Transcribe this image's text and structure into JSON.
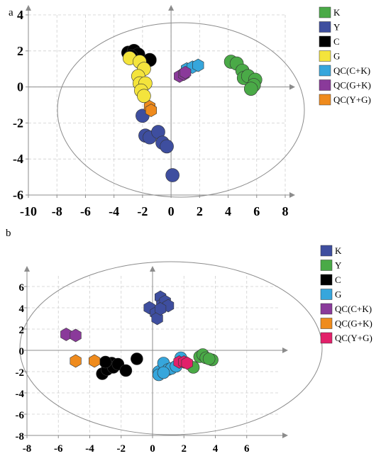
{
  "chart_data": [
    {
      "type": "scatter",
      "panel_label": "a",
      "xlim": [
        -10,
        8
      ],
      "ylim": [
        -6,
        4
      ],
      "xticks": [
        -10,
        -8,
        -6,
        -4,
        -2,
        0,
        2,
        4,
        6,
        8
      ],
      "yticks": [
        -6,
        -4,
        -2,
        0,
        2,
        4
      ],
      "grid": true,
      "legend_position": "right",
      "series": [
        {
          "name": "K",
          "color": "#4aaa47",
          "marker": "circle",
          "points": [
            [
              4.2,
              1.4
            ],
            [
              4.6,
              1.3
            ],
            [
              5.0,
              0.9
            ],
            [
              5.1,
              0.5
            ],
            [
              5.4,
              0.6
            ],
            [
              5.9,
              0.4
            ],
            [
              5.8,
              0.1
            ],
            [
              5.6,
              -0.1
            ]
          ]
        },
        {
          "name": "Y",
          "color": "#3e4e9f",
          "marker": "circle",
          "points": [
            [
              -2.0,
              -1.6
            ],
            [
              -1.8,
              -2.7
            ],
            [
              -1.5,
              -2.8
            ],
            [
              -0.9,
              -2.5
            ],
            [
              -0.6,
              -3.1
            ],
            [
              -0.3,
              -3.3
            ],
            [
              0.1,
              -4.9
            ]
          ]
        },
        {
          "name": "C",
          "color": "#000000",
          "marker": "circle",
          "points": [
            [
              -3.0,
              1.9
            ],
            [
              -2.6,
              2.0
            ],
            [
              -2.3,
              1.8
            ],
            [
              -1.5,
              1.5
            ],
            [
              -2.8,
              1.7
            ]
          ]
        },
        {
          "name": "G",
          "color": "#f4e43c",
          "marker": "circle",
          "points": [
            [
              -2.9,
              1.6
            ],
            [
              -2.2,
              1.4
            ],
            [
              -1.9,
              1.0
            ],
            [
              -2.3,
              0.6
            ],
            [
              -2.2,
              0.2
            ],
            [
              -1.8,
              0.2
            ],
            [
              -2.1,
              -0.2
            ],
            [
              -1.9,
              -0.5
            ]
          ]
        },
        {
          "name": "QC(C+K)",
          "color": "#36a6dc",
          "marker": "hexagon",
          "points": [
            [
              1.1,
              1.0
            ],
            [
              1.5,
              1.1
            ],
            [
              1.9,
              1.2
            ]
          ]
        },
        {
          "name": "QC(G+K)",
          "color": "#8a3a9a",
          "marker": "hexagon",
          "points": [
            [
              0.6,
              0.6
            ],
            [
              0.9,
              0.7
            ],
            [
              1.0,
              0.8
            ]
          ]
        },
        {
          "name": "QC(Y+G)",
          "color": "#ef8b1d",
          "marker": "hexagon",
          "points": [
            [
              -1.5,
              -1.1
            ],
            [
              -1.4,
              -1.3
            ]
          ]
        }
      ]
    },
    {
      "type": "scatter",
      "panel_label": "b",
      "xlim": [
        -8,
        8
      ],
      "ylim": [
        -8,
        7
      ],
      "xticks": [
        -8,
        -6,
        -4,
        -2,
        0,
        2,
        4,
        6
      ],
      "yticks": [
        -8,
        -6,
        -4,
        -2,
        0,
        2,
        4,
        6
      ],
      "grid": true,
      "legend_position": "right",
      "series": [
        {
          "name": "K",
          "color": "#3e4e9f",
          "marker": "hexagon",
          "points": [
            [
              -0.2,
              4.0
            ],
            [
              0.2,
              3.5
            ],
            [
              0.5,
              5.0
            ],
            [
              0.6,
              4.3
            ],
            [
              0.8,
              4.6
            ],
            [
              1.0,
              4.2
            ],
            [
              0.3,
              3.0
            ],
            [
              0.5,
              3.9
            ]
          ]
        },
        {
          "name": "Y",
          "color": "#4aaa47",
          "marker": "circle",
          "points": [
            [
              3.0,
              -0.6
            ],
            [
              3.2,
              -0.4
            ],
            [
              3.4,
              -0.7
            ],
            [
              3.8,
              -0.9
            ],
            [
              2.6,
              -1.6
            ],
            [
              3.6,
              -0.8
            ]
          ]
        },
        {
          "name": "C",
          "color": "#000000",
          "marker": "circle",
          "points": [
            [
              -3.2,
              -2.2
            ],
            [
              -2.9,
              -1.8
            ],
            [
              -2.6,
              -1.2
            ],
            [
              -2.5,
              -1.6
            ],
            [
              -2.2,
              -1.3
            ],
            [
              -1.7,
              -1.9
            ],
            [
              -1.0,
              -0.8
            ],
            [
              -3.0,
              -1.1
            ]
          ]
        },
        {
          "name": "G",
          "color": "#36a6dc",
          "marker": "circle",
          "points": [
            [
              0.4,
              -2.0
            ],
            [
              0.4,
              -2.3
            ],
            [
              0.7,
              -1.2
            ],
            [
              1.0,
              -1.8
            ],
            [
              1.2,
              -1.7
            ],
            [
              1.5,
              -1.5
            ],
            [
              1.8,
              -0.7
            ],
            [
              0.7,
              -2.1
            ]
          ]
        },
        {
          "name": "QC(C+K)",
          "color": "#8a3a9a",
          "marker": "hexagon",
          "points": [
            [
              -5.5,
              1.5
            ],
            [
              -4.9,
              1.4
            ]
          ]
        },
        {
          "name": "QC(G+K)",
          "color": "#ef8b1d",
          "marker": "hexagon",
          "points": [
            [
              -4.9,
              -1.0
            ],
            [
              -3.7,
              -1.0
            ]
          ]
        },
        {
          "name": "QC(Y+G)",
          "color": "#e2206a",
          "marker": "hexagon",
          "points": [
            [
              1.7,
              -1.1
            ],
            [
              2.0,
              -1.1
            ],
            [
              2.2,
              -1.2
            ]
          ]
        }
      ]
    }
  ]
}
